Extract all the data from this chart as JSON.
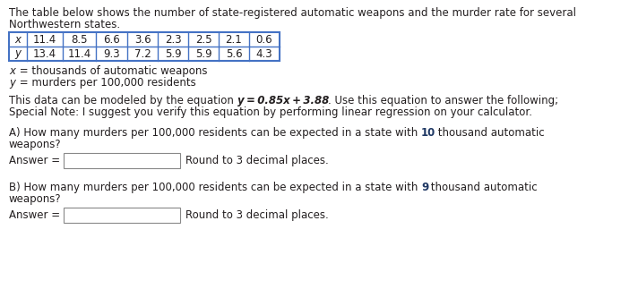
{
  "x_values": [
    "11.4",
    "8.5",
    "6.6",
    "3.6",
    "2.3",
    "2.5",
    "2.1",
    "0.6"
  ],
  "y_values": [
    "13.4",
    "11.4",
    "9.3",
    "7.2",
    "5.9",
    "5.9",
    "5.6",
    "4.3"
  ],
  "bg_color": "#ffffff",
  "text_color": "#231f20",
  "highlight_color": "#1f3864",
  "table_border_color": "#4472c4",
  "font_size": 8.5,
  "font_family": "DejaVu Sans"
}
